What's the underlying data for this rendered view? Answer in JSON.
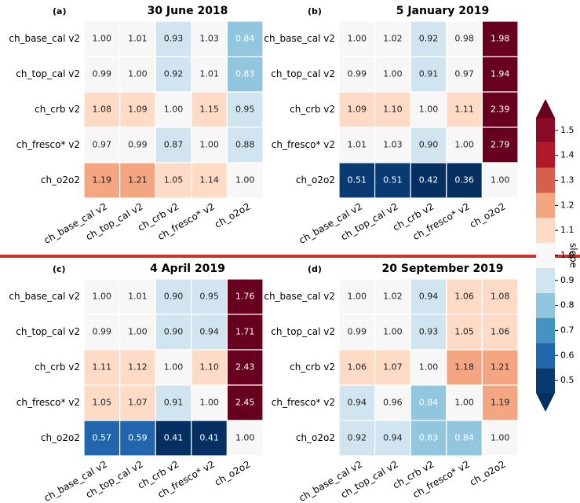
{
  "chart_data": [
    {
      "type": "heatmap",
      "panel": "(a)",
      "title": "30 June 2018",
      "categories": [
        "ch_base_cal v2",
        "ch_top_cal v2",
        "ch_crb v2",
        "ch_fresco* v2",
        "ch_o2o2"
      ],
      "values": [
        [
          1.0,
          1.01,
          0.93,
          1.03,
          0.84
        ],
        [
          0.99,
          1.0,
          0.92,
          1.01,
          0.83
        ],
        [
          1.08,
          1.09,
          1.0,
          1.15,
          0.95
        ],
        [
          0.97,
          0.99,
          0.87,
          1.0,
          0.88
        ],
        [
          1.19,
          1.21,
          1.05,
          1.14,
          1.0
        ]
      ],
      "value_labels": [
        [
          "1.00",
          "1.01",
          "0.93",
          "1.03",
          "0.84"
        ],
        [
          "0.99",
          "1.00",
          "0.92",
          "1.01",
          "0.83"
        ],
        [
          "1.08",
          "1.09",
          "1.00",
          "1.15",
          "0.95"
        ],
        [
          "0.97",
          "0.99",
          "0.87",
          "1.00",
          "0.88"
        ],
        [
          "1.19",
          "1.21",
          "1.05",
          "1.14",
          "1.00"
        ]
      ]
    },
    {
      "type": "heatmap",
      "panel": "(b)",
      "title": "5 January 2019",
      "categories": [
        "ch_base_cal v2",
        "ch_top_cal v2",
        "ch_crb v2",
        "ch_fresco* v2",
        "ch_o2o2"
      ],
      "values": [
        [
          1.0,
          1.02,
          0.92,
          0.98,
          1.98
        ],
        [
          0.99,
          1.0,
          0.91,
          0.97,
          1.94
        ],
        [
          1.09,
          1.1,
          1.0,
          1.11,
          2.39
        ],
        [
          1.01,
          1.03,
          0.9,
          1.0,
          2.79
        ],
        [
          0.51,
          0.51,
          0.42,
          0.36,
          1.0
        ]
      ],
      "value_labels": [
        [
          "1.00",
          "1.02",
          "0.92",
          "0.98",
          "1.98"
        ],
        [
          "0.99",
          "1.00",
          "0.91",
          "0.97",
          "1.94"
        ],
        [
          "1.09",
          "1.10",
          "1.00",
          "1.11",
          "2.39"
        ],
        [
          "1.01",
          "1.03",
          "0.90",
          "1.00",
          "2.79"
        ],
        [
          "0.51",
          "0.51",
          "0.42",
          "0.36",
          "1.00"
        ]
      ]
    },
    {
      "type": "heatmap",
      "panel": "(c)",
      "title": "4 April 2019",
      "categories": [
        "ch_base_cal v2",
        "ch_top_cal v2",
        "ch_crb v2",
        "ch_fresco* v2",
        "ch_o2o2"
      ],
      "values": [
        [
          1.0,
          1.01,
          0.9,
          0.95,
          1.76
        ],
        [
          0.99,
          1.0,
          0.9,
          0.94,
          1.71
        ],
        [
          1.11,
          1.12,
          1.0,
          1.1,
          2.43
        ],
        [
          1.05,
          1.07,
          0.91,
          1.0,
          2.45
        ],
        [
          0.57,
          0.59,
          0.41,
          0.41,
          1.0
        ]
      ],
      "value_labels": [
        [
          "1.00",
          "1.01",
          "0.90",
          "0.95",
          "1.76"
        ],
        [
          "0.99",
          "1.00",
          "0.90",
          "0.94",
          "1.71"
        ],
        [
          "1.11",
          "1.12",
          "1.00",
          "1.10",
          "2.43"
        ],
        [
          "1.05",
          "1.07",
          "0.91",
          "1.00",
          "2.45"
        ],
        [
          "0.57",
          "0.59",
          "0.41",
          "0.41",
          "1.00"
        ]
      ]
    },
    {
      "type": "heatmap",
      "panel": "(d)",
      "title": "20 September 2019",
      "categories": [
        "ch_base_cal v2",
        "ch_top_cal v2",
        "ch_crb v2",
        "ch_fresco* v2",
        "ch_o2o2"
      ],
      "values": [
        [
          1.0,
          1.02,
          0.94,
          1.06,
          1.08
        ],
        [
          0.99,
          1.0,
          0.93,
          1.05,
          1.06
        ],
        [
          1.06,
          1.07,
          1.0,
          1.18,
          1.21
        ],
        [
          0.94,
          0.96,
          0.84,
          1.0,
          1.19
        ],
        [
          0.92,
          0.94,
          0.83,
          0.84,
          1.0
        ]
      ],
      "value_labels": [
        [
          "1.00",
          "1.02",
          "0.94",
          "1.06",
          "1.08"
        ],
        [
          "0.99",
          "1.00",
          "0.93",
          "1.05",
          "1.06"
        ],
        [
          "1.06",
          "1.07",
          "1.00",
          "1.18",
          "1.21"
        ],
        [
          "0.94",
          "0.96",
          "0.84",
          "1.00",
          "1.19"
        ],
        [
          "0.92",
          "0.94",
          "0.83",
          "0.84",
          "1.00"
        ]
      ]
    }
  ],
  "colorbar": {
    "label": "slope",
    "ticks": [
      0.5,
      0.6,
      0.7,
      0.8,
      0.9,
      {
        "value": 1.0,
        "label": "1.0"
      },
      1.1,
      1.2,
      1.3,
      1.4,
      1.5
    ],
    "colors": [
      "#0a3a72",
      "#2166ac",
      "#4393c3",
      "#92c5de",
      "#d1e5f0",
      "#f7f7f7",
      "#fddbc7",
      "#f4a582",
      "#d6604d",
      "#b2182b",
      "#8b0a26"
    ],
    "under": "#053061",
    "over": "#67001f"
  }
}
